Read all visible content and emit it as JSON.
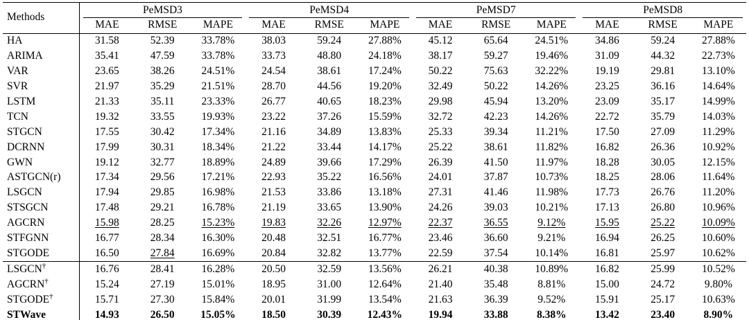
{
  "table": {
    "methods_header": "Methods",
    "groups": [
      {
        "label": "PeMSD3"
      },
      {
        "label": "PeMSD4"
      },
      {
        "label": "PeMSD7"
      },
      {
        "label": "PeMSD8"
      }
    ],
    "metrics": [
      "MAE",
      "RMSE",
      "MAPE"
    ],
    "rows": [
      {
        "method": "HA",
        "values": [
          "31.58",
          "52.39",
          "33.78%",
          "38.03",
          "59.24",
          "27.88%",
          "45.12",
          "65.64",
          "24.51%",
          "34.86",
          "59.24",
          "27.88%"
        ]
      },
      {
        "method": "ARIMA",
        "values": [
          "35.41",
          "47.59",
          "33.78%",
          "33.73",
          "48.80",
          "24.18%",
          "38.17",
          "59.27",
          "19.46%",
          "31.09",
          "44.32",
          "22.73%"
        ]
      },
      {
        "method": "VAR",
        "values": [
          "23.65",
          "38.26",
          "24.51%",
          "24.54",
          "38.61",
          "17.24%",
          "50.22",
          "75.63",
          "32.22%",
          "19.19",
          "29.81",
          "13.10%"
        ]
      },
      {
        "method": "SVR",
        "values": [
          "21.97",
          "35.29",
          "21.51%",
          "28.70",
          "44.56",
          "19.20%",
          "32.49",
          "50.22",
          "14.26%",
          "23.25",
          "36.16",
          "14.64%"
        ]
      },
      {
        "method": "LSTM",
        "values": [
          "21.33",
          "35.11",
          "23.33%",
          "26.77",
          "40.65",
          "18.23%",
          "29.98",
          "45.94",
          "13.20%",
          "23.09",
          "35.17",
          "14.99%"
        ]
      },
      {
        "method": "TCN",
        "values": [
          "19.32",
          "33.55",
          "19.93%",
          "23.22",
          "37.26",
          "15.59%",
          "32.72",
          "42.23",
          "14.26%",
          "22.72",
          "35.79",
          "14.03%"
        ]
      },
      {
        "method": "STGCN",
        "values": [
          "17.55",
          "30.42",
          "17.34%",
          "21.16",
          "34.89",
          "13.83%",
          "25.33",
          "39.34",
          "11.21%",
          "17.50",
          "27.09",
          "11.29%"
        ]
      },
      {
        "method": "DCRNN",
        "values": [
          "17.99",
          "30.31",
          "18.34%",
          "21.22",
          "33.44",
          "14.17%",
          "25.22",
          "38.61",
          "11.82%",
          "16.82",
          "26.36",
          "10.92%"
        ]
      },
      {
        "method": "GWN",
        "values": [
          "19.12",
          "32.77",
          "18.89%",
          "24.89",
          "39.66",
          "17.29%",
          "26.39",
          "41.50",
          "11.97%",
          "18.28",
          "30.05",
          "12.15%"
        ]
      },
      {
        "method": "ASTGCN(r)",
        "values": [
          "17.34",
          "29.56",
          "17.21%",
          "22.93",
          "35.22",
          "16.56%",
          "24.01",
          "37.87",
          "10.73%",
          "18.25",
          "28.06",
          "11.64%"
        ]
      },
      {
        "method": "LSGCN",
        "values": [
          "17.94",
          "29.85",
          "16.98%",
          "21.53",
          "33.86",
          "13.18%",
          "27.31",
          "41.46",
          "11.98%",
          "17.73",
          "26.76",
          "11.20%"
        ]
      },
      {
        "method": "STSGCN",
        "values": [
          "17.48",
          "29.21",
          "16.78%",
          "21.19",
          "33.65",
          "13.90%",
          "24.26",
          "39.03",
          "10.21%",
          "17.13",
          "26.80",
          "10.96%"
        ]
      },
      {
        "method": "AGCRN",
        "values": [
          "15.98",
          "28.25",
          "15.23%",
          "19.83",
          "32.26",
          "12.97%",
          "22.37",
          "36.55",
          "9.12%",
          "15.95",
          "25.22",
          "10.09%"
        ],
        "underline": [
          0,
          2,
          3,
          4,
          5,
          6,
          7,
          8,
          9,
          10,
          11
        ]
      },
      {
        "method": "STFGNN",
        "values": [
          "16.77",
          "28.34",
          "16.30%",
          "20.48",
          "32.51",
          "16.77%",
          "23.46",
          "36.60",
          "9.21%",
          "16.94",
          "26.25",
          "10.60%"
        ]
      },
      {
        "method": "STGODE",
        "values": [
          "16.50",
          "27.84",
          "16.69%",
          "20.84",
          "32.82",
          "13.77%",
          "22.59",
          "37.54",
          "10.14%",
          "16.81",
          "25.97",
          "10.62%"
        ],
        "underline": [
          1
        ]
      },
      {
        "method": "LSGCN†",
        "values": [
          "16.76",
          "28.41",
          "16.28%",
          "20.50",
          "32.59",
          "13.56%",
          "26.21",
          "40.38",
          "10.89%",
          "16.82",
          "25.99",
          "10.52%"
        ],
        "section_start": true
      },
      {
        "method": "AGCRN†",
        "values": [
          "15.24",
          "27.19",
          "15.01%",
          "18.95",
          "31.00",
          "12.64%",
          "21.40",
          "35.48",
          "8.81%",
          "15.00",
          "24.72",
          "9.80%"
        ]
      },
      {
        "method": "STGODE†",
        "values": [
          "15.71",
          "27.30",
          "15.84%",
          "20.01",
          "31.99",
          "13.54%",
          "21.63",
          "36.39",
          "9.52%",
          "15.91",
          "25.17",
          "10.63%"
        ]
      },
      {
        "method": "STWave",
        "values": [
          "14.93",
          "26.50",
          "15.05%",
          "18.50",
          "30.39",
          "12.43%",
          "19.94",
          "33.88",
          "8.38%",
          "13.42",
          "23.40",
          "8.90%"
        ],
        "bold_all": true
      }
    ]
  }
}
